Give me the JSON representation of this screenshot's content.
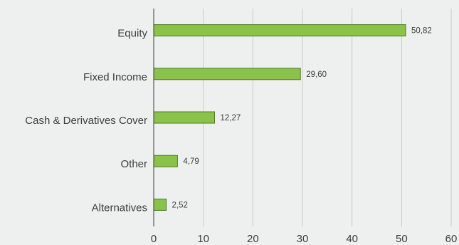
{
  "chart_data": {
    "type": "bar",
    "orientation": "horizontal",
    "title": "",
    "xlabel": "",
    "ylabel": "",
    "categories": [
      "Equity",
      "Fixed Income",
      "Cash & Derivatives Cover",
      "Other",
      "Alternatives"
    ],
    "values": [
      50.82,
      29.6,
      12.27,
      4.79,
      2.52
    ],
    "data_labels": [
      "50,82",
      "29,60",
      "12,27",
      "4,79",
      "2,52"
    ],
    "xlim": [
      0,
      60
    ],
    "xticks": [
      "0",
      "10",
      "20",
      "30",
      "40",
      "50",
      "60"
    ],
    "bar_color": "#8bc34a",
    "grid": true
  }
}
